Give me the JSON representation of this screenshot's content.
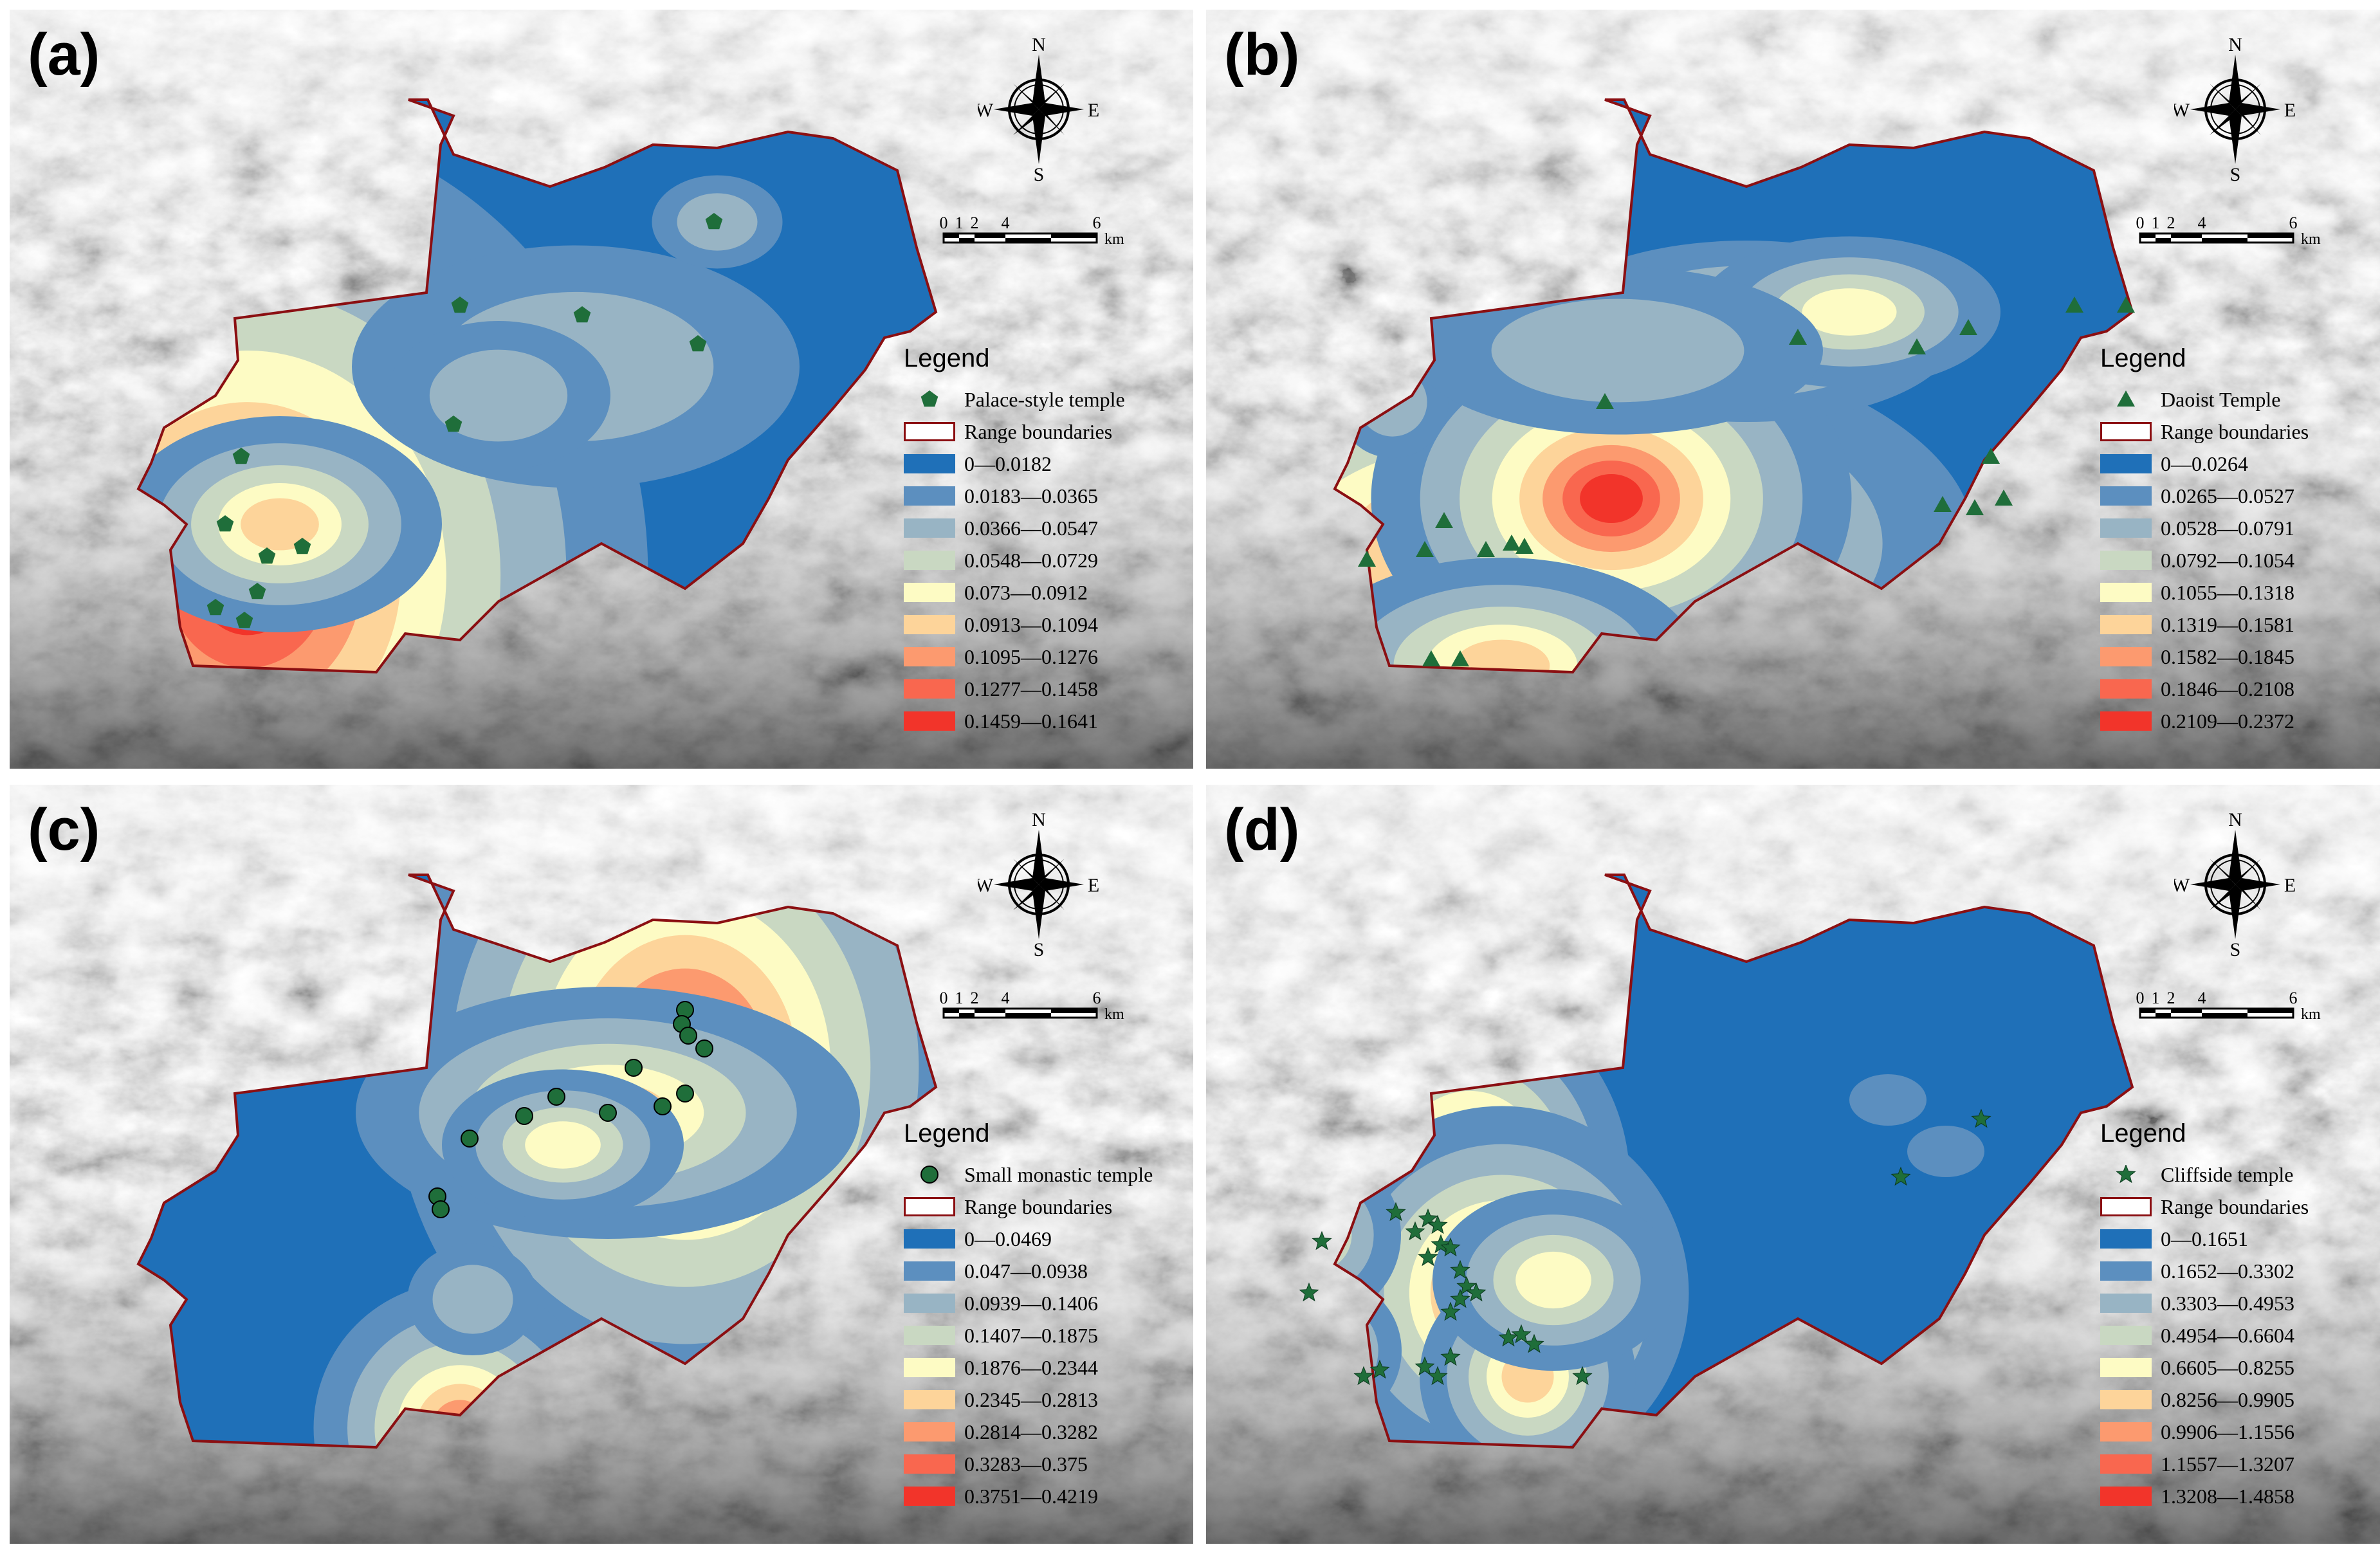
{
  "panels": [
    {
      "id": "a",
      "label": "(a)",
      "point_label": "Palace-style temple",
      "boundary_label": "Range boundaries",
      "symbol": "pentagon",
      "classes": [
        "0—0.0182",
        "0.0183—0.0365",
        "0.0366—0.0547",
        "0.0548—0.0729",
        "0.073—0.0912",
        "0.0913—0.1094",
        "0.1095—0.1276",
        "0.1277—0.1458",
        "0.1459—0.1641"
      ]
    },
    {
      "id": "b",
      "label": "(b)",
      "point_label": "Daoist Temple",
      "boundary_label": "Range boundaries",
      "symbol": "triangle",
      "classes": [
        "0—0.0264",
        "0.0265—0.0527",
        "0.0528—0.0791",
        "0.0792—0.1054",
        "0.1055—0.1318",
        "0.1319—0.1581",
        "0.1582—0.1845",
        "0.1846—0.2108",
        "0.2109—0.2372"
      ]
    },
    {
      "id": "c",
      "label": "(c)",
      "point_label": "Small monastic temple",
      "boundary_label": "Range boundaries",
      "symbol": "circle",
      "classes": [
        "0—0.0469",
        "0.047—0.0938",
        "0.0939—0.1406",
        "0.1407—0.1875",
        "0.1876—0.2344",
        "0.2345—0.2813",
        "0.2814—0.3282",
        "0.3283—0.375",
        "0.3751—0.4219"
      ]
    },
    {
      "id": "d",
      "label": "(d)",
      "point_label": "Cliffside temple",
      "boundary_label": "Range boundaries",
      "symbol": "star",
      "classes": [
        "0—0.1651",
        "0.1652—0.3302",
        "0.3303—0.4953",
        "0.4954—0.6604",
        "0.6605—0.8255",
        "0.8256—0.9905",
        "0.9906—1.1556",
        "1.1557—1.3207",
        "1.3208—1.4858"
      ]
    }
  ],
  "legend_title": "Legend",
  "compass": {
    "n": "N",
    "s": "S",
    "e": "E",
    "w": "W"
  },
  "scale": {
    "ticks": [
      "0",
      "1",
      "2",
      "4",
      "6"
    ],
    "unit": "km"
  },
  "colors": {
    "ramp": [
      "#1f70b8",
      "#5c8fbf",
      "#98b4c4",
      "#c9d8c2",
      "#fdfbc4",
      "#fdd49a",
      "#fc9a6f",
      "#f9674f",
      "#f2342a"
    ],
    "boundary": "#8b0f12",
    "point": "#1f6e3a"
  }
}
